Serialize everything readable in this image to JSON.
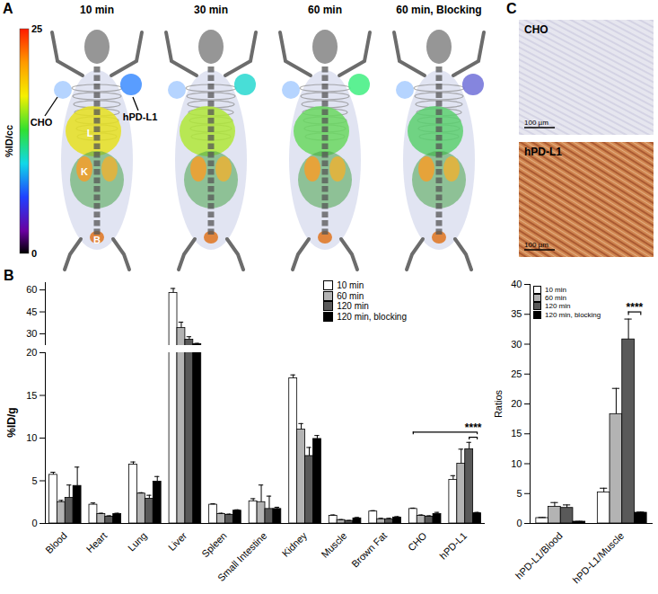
{
  "figure": {
    "panel_labels": [
      "A",
      "B",
      "C"
    ],
    "imaging": {
      "timepoints": [
        "10 min",
        "30 min",
        "60 min",
        "60 min, Blocking"
      ],
      "tumor_labels": [
        "CHO",
        "hPD-L1"
      ],
      "organ_labels": [
        "L",
        "K",
        "B"
      ],
      "colorbar": {
        "label": "%ID/cc",
        "range": [
          0,
          25
        ],
        "ticks": [
          0,
          25
        ]
      }
    },
    "histology": {
      "panels": [
        "CHO",
        "hPD-L1"
      ],
      "scale_bar": "100 µm"
    }
  },
  "chart_data": [
    {
      "type": "bar",
      "y_label": "%ID/g",
      "categories": [
        "Blood",
        "Heart",
        "Lung",
        "Liver",
        "Spleen",
        "Small Intestine",
        "Kidney",
        "Muscle",
        "Brown Fat",
        "CHO",
        "hPD-L1"
      ],
      "series": [
        {
          "name": "10 min",
          "color": "#ffffff",
          "values": [
            5.7,
            2.2,
            6.9,
            58.0,
            2.2,
            2.6,
            17.0,
            0.9,
            1.4,
            1.7,
            5.1
          ],
          "errors": [
            0.3,
            0.2,
            0.3,
            3.0,
            0.1,
            0.3,
            0.4,
            0.1,
            0.1,
            0.1,
            0.5
          ]
        },
        {
          "name": "60 min",
          "color": "#b3b3b3",
          "values": [
            2.5,
            1.1,
            3.5,
            34.0,
            1.1,
            2.5,
            11.0,
            0.4,
            0.5,
            0.9,
            7.0
          ],
          "errors": [
            0.2,
            0.1,
            0.1,
            4.0,
            0.1,
            2.0,
            0.7,
            0.05,
            0.1,
            0.1,
            1.7
          ]
        },
        {
          "name": "120 min",
          "color": "#595959",
          "values": [
            3.0,
            0.8,
            2.9,
            26.0,
            1.0,
            1.7,
            7.9,
            0.3,
            0.5,
            0.8,
            8.7
          ],
          "errors": [
            1.5,
            0.1,
            0.4,
            2.0,
            0.1,
            1.5,
            1.0,
            0.05,
            0.1,
            0.1,
            0.8
          ]
        },
        {
          "name": "120 min, blocking",
          "color": "#000000",
          "values": [
            4.4,
            1.1,
            4.9,
            23.0,
            1.5,
            1.7,
            9.9,
            0.6,
            0.7,
            1.1,
            1.2
          ],
          "errors": [
            2.2,
            0.1,
            0.6,
            0.5,
            0.1,
            0.2,
            0.4,
            0.1,
            0.1,
            0.2,
            0.1
          ]
        }
      ],
      "ylim": [
        0,
        65
      ],
      "yticks": [
        0,
        5,
        10,
        15,
        20,
        30,
        45,
        60
      ],
      "y_break": [
        20,
        22
      ],
      "legend": "top-right",
      "annotations": [
        {
          "text": "****",
          "categories": [
            "CHO",
            "hPD-L1"
          ],
          "series": [
            "120 min",
            "120 min, blocking"
          ]
        }
      ]
    },
    {
      "type": "bar",
      "y_label": "Ratios",
      "categories": [
        "hPD-L1/Blood",
        "hPD-L1/Muscle"
      ],
      "series": [
        {
          "name": "10 min",
          "color": "#ffffff",
          "values": [
            0.9,
            5.2
          ],
          "errors": [
            0.1,
            0.7
          ]
        },
        {
          "name": "60 min",
          "color": "#b3b3b3",
          "values": [
            2.8,
            18.3
          ],
          "errors": [
            0.7,
            4.3
          ]
        },
        {
          "name": "120 min",
          "color": "#595959",
          "values": [
            2.6,
            30.8
          ],
          "errors": [
            0.5,
            3.4
          ]
        },
        {
          "name": "120 min, blocking",
          "color": "#000000",
          "values": [
            0.3,
            1.8
          ],
          "errors": [
            0.05,
            0.1
          ]
        }
      ],
      "ylim": [
        0,
        40
      ],
      "yticks": [
        0,
        5,
        10,
        15,
        20,
        25,
        30,
        35,
        40
      ],
      "legend": "top-left",
      "annotations": [
        {
          "text": "****",
          "categories": [
            "hPD-L1/Muscle"
          ],
          "series": [
            "120 min",
            "120 min, blocking"
          ]
        }
      ]
    }
  ]
}
